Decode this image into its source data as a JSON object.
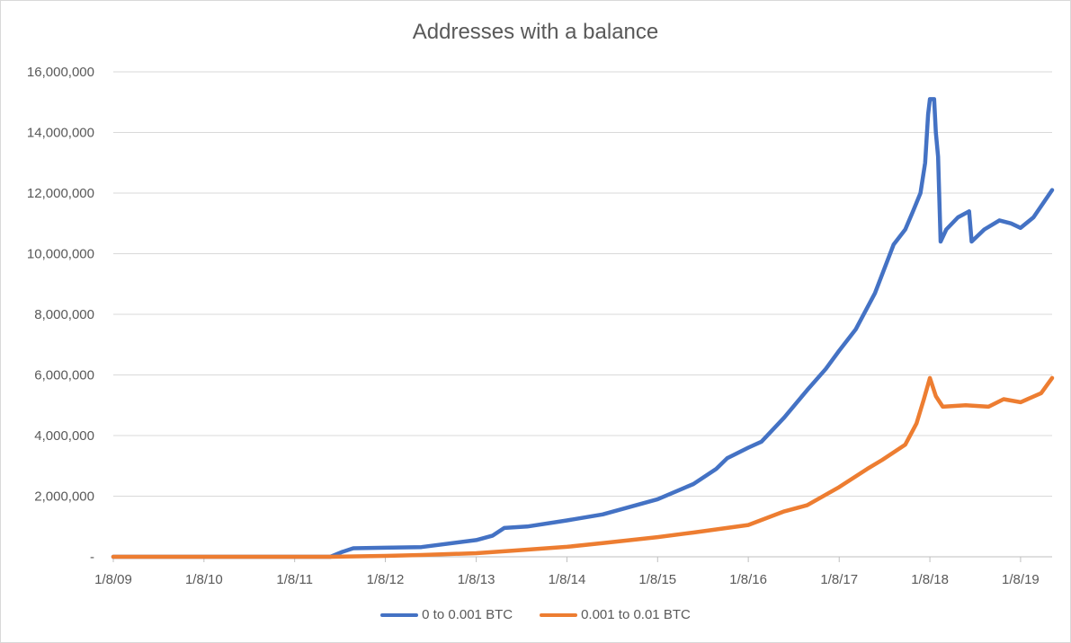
{
  "chart_data": {
    "type": "line",
    "title": "Addresses with a balance",
    "xlabel": "",
    "ylabel": "",
    "x_tick_labels": [
      "1/8/09",
      "1/8/10",
      "1/8/11",
      "1/8/12",
      "1/8/13",
      "1/8/14",
      "1/8/15",
      "1/8/16",
      "1/8/17",
      "1/8/18",
      "1/8/19"
    ],
    "x_tick_dates": [
      "2009-01-08",
      "2010-01-08",
      "2011-01-08",
      "2012-01-08",
      "2013-01-08",
      "2014-01-08",
      "2015-01-08",
      "2016-01-08",
      "2017-01-08",
      "2018-01-08",
      "2019-01-08"
    ],
    "xlim": [
      "2009-01-08",
      "2019-05-15"
    ],
    "y_tick_labels": [
      "-",
      "2,000,000",
      "4,000,000",
      "6,000,000",
      "8,000,000",
      "10,000,000",
      "12,000,000",
      "14,000,000",
      "16,000,000"
    ],
    "ylim": [
      0,
      16000000
    ],
    "grid": true,
    "legend_position": "bottom",
    "series": [
      {
        "name": "0 to 0.001 BTC",
        "color": "#4472c4",
        "points": [
          [
            "2009-01-08",
            0
          ],
          [
            "2011-06-01",
            0
          ],
          [
            "2011-07-15",
            150000
          ],
          [
            "2011-09-01",
            280000
          ],
          [
            "2012-01-08",
            300000
          ],
          [
            "2012-06-01",
            320000
          ],
          [
            "2013-01-08",
            550000
          ],
          [
            "2013-03-15",
            700000
          ],
          [
            "2013-05-01",
            950000
          ],
          [
            "2013-08-01",
            1000000
          ],
          [
            "2014-01-08",
            1200000
          ],
          [
            "2014-06-01",
            1400000
          ],
          [
            "2015-01-08",
            1900000
          ],
          [
            "2015-06-01",
            2400000
          ],
          [
            "2015-09-01",
            2900000
          ],
          [
            "2015-10-15",
            3250000
          ],
          [
            "2016-01-08",
            3600000
          ],
          [
            "2016-03-01",
            3800000
          ],
          [
            "2016-06-01",
            4600000
          ],
          [
            "2016-09-01",
            5500000
          ],
          [
            "2016-11-15",
            6200000
          ],
          [
            "2017-01-08",
            6800000
          ],
          [
            "2017-03-15",
            7500000
          ],
          [
            "2017-06-01",
            8700000
          ],
          [
            "2017-08-15",
            10300000
          ],
          [
            "2017-10-01",
            10800000
          ],
          [
            "2017-11-01",
            11400000
          ],
          [
            "2017-12-01",
            12000000
          ],
          [
            "2017-12-20",
            13000000
          ],
          [
            "2018-01-01",
            14600000
          ],
          [
            "2018-01-08",
            15100000
          ],
          [
            "2018-01-25",
            15100000
          ],
          [
            "2018-02-01",
            14000000
          ],
          [
            "2018-02-10",
            13200000
          ],
          [
            "2018-02-20",
            10400000
          ],
          [
            "2018-03-15",
            10800000
          ],
          [
            "2018-05-01",
            11200000
          ],
          [
            "2018-06-15",
            11400000
          ],
          [
            "2018-06-25",
            10400000
          ],
          [
            "2018-08-15",
            10800000
          ],
          [
            "2018-10-15",
            11100000
          ],
          [
            "2018-12-01",
            11000000
          ],
          [
            "2019-01-08",
            10850000
          ],
          [
            "2019-03-01",
            11200000
          ],
          [
            "2019-05-15",
            12100000
          ]
        ]
      },
      {
        "name": "0.001 to 0.01 BTC",
        "color": "#ed7d31",
        "points": [
          [
            "2009-01-08",
            0
          ],
          [
            "2011-06-01",
            0
          ],
          [
            "2012-01-08",
            30000
          ],
          [
            "2012-06-01",
            60000
          ],
          [
            "2013-01-08",
            120000
          ],
          [
            "2013-06-01",
            200000
          ],
          [
            "2014-01-08",
            330000
          ],
          [
            "2014-06-01",
            450000
          ],
          [
            "2015-01-08",
            650000
          ],
          [
            "2015-06-01",
            800000
          ],
          [
            "2016-01-08",
            1050000
          ],
          [
            "2016-06-01",
            1500000
          ],
          [
            "2016-09-01",
            1700000
          ],
          [
            "2017-01-08",
            2300000
          ],
          [
            "2017-05-01",
            2900000
          ],
          [
            "2017-07-01",
            3200000
          ],
          [
            "2017-10-01",
            3700000
          ],
          [
            "2017-11-15",
            4400000
          ],
          [
            "2017-12-15",
            5200000
          ],
          [
            "2018-01-08",
            5900000
          ],
          [
            "2018-02-01",
            5300000
          ],
          [
            "2018-03-01",
            4950000
          ],
          [
            "2018-06-01",
            5000000
          ],
          [
            "2018-09-01",
            4950000
          ],
          [
            "2018-11-01",
            5200000
          ],
          [
            "2019-01-08",
            5100000
          ],
          [
            "2019-04-01",
            5400000
          ],
          [
            "2019-05-15",
            5900000
          ]
        ]
      }
    ]
  }
}
